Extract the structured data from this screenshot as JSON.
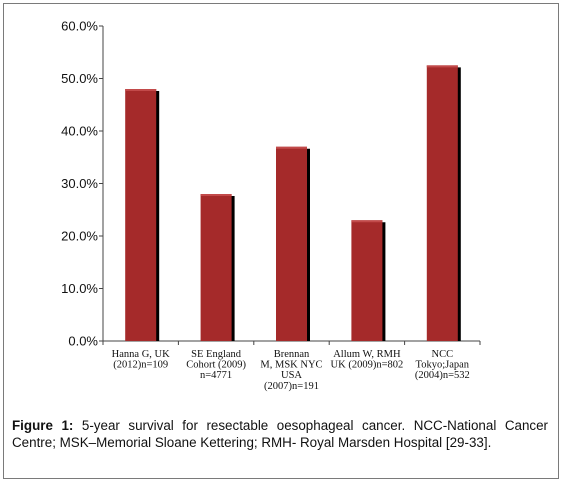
{
  "chart_data": {
    "type": "bar",
    "categories": [
      [
        "Hanna G, UK",
        "(2012)n=109"
      ],
      [
        "SE England",
        "Cohort (2009)",
        "n=4771"
      ],
      [
        "Brennan",
        "M, MSK NYC",
        "USA",
        "(2007)n=191"
      ],
      [
        "Allum W, RMH",
        "UK (2009)n=802"
      ],
      [
        "NCC",
        "Tokyo;Japan",
        "(2004)n=532"
      ]
    ],
    "values": [
      48.0,
      28.0,
      37.0,
      23.0,
      52.5
    ],
    "ylim": [
      0,
      60
    ],
    "yticks": [
      "0.0%",
      "10.0%",
      "20.0%",
      "30.0%",
      "40.0%",
      "50.0%",
      "60.0%"
    ],
    "ytick_values": [
      0,
      10,
      20,
      30,
      40,
      50,
      60
    ],
    "grid": false,
    "legend": "none",
    "bar_color": "#a52a2a",
    "bar_shadow_color": "#000000"
  },
  "caption": {
    "label": "Figure 1:",
    "text": " 5-year survival for resectable oesophageal cancer. NCC-National Cancer Centre; MSK–Memorial Sloane Kettering; RMH- Royal Marsden Hospital [29-33]."
  }
}
